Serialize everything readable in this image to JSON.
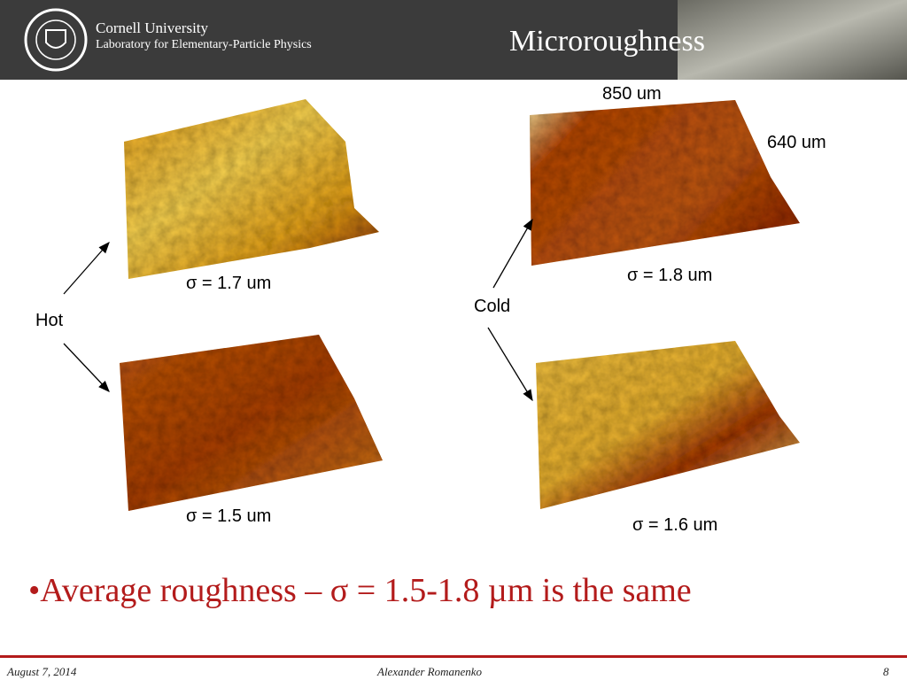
{
  "header": {
    "university": "Cornell University",
    "lab": "Laboratory for Elementary-Particle Physics",
    "title": "Microroughness"
  },
  "dimensions": {
    "width": "850 um",
    "height": "640 um"
  },
  "groups": [
    {
      "label": "Hot"
    },
    {
      "label": "Cold"
    }
  ],
  "samples": [
    {
      "sigma": "σ = 1.7 um"
    },
    {
      "sigma": "σ = 1.5 um"
    },
    {
      "sigma": "σ = 1.8 um"
    },
    {
      "sigma": "σ = 1.6 um"
    }
  ],
  "bullet": "•Average roughness – σ = 1.5-1.8 µm is the same",
  "footer": {
    "date": "August 7, 2014",
    "author": "Alexander Romanenko",
    "page": "8"
  }
}
